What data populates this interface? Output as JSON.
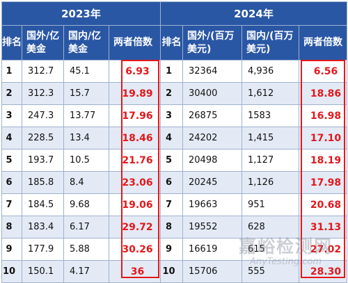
{
  "years": [
    "2023年",
    "2024年"
  ],
  "headers_2023": {
    "rank": "排名",
    "foreign": "国外/亿美金",
    "domestic": "国内/亿美金",
    "ratio": "两者倍数"
  },
  "headers_2024": {
    "rank": "排名",
    "foreign": "国外/(百万美元)",
    "domestic": "国内/(百万美元)",
    "ratio": "两者倍数"
  },
  "rows_2023": [
    {
      "rank": "1",
      "foreign": "312.7",
      "domestic": "45.1",
      "ratio": "6.93"
    },
    {
      "rank": "2",
      "foreign": "312.3",
      "domestic": "15.7",
      "ratio": "19.89"
    },
    {
      "rank": "3",
      "foreign": "247.3",
      "domestic": "13.77",
      "ratio": "17.96"
    },
    {
      "rank": "4",
      "foreign": "228.5",
      "domestic": "13.4",
      "ratio": "18.46"
    },
    {
      "rank": "5",
      "foreign": "193.7",
      "domestic": "10.5",
      "ratio": "21.76"
    },
    {
      "rank": "6",
      "foreign": "185.8",
      "domestic": "8.4",
      "ratio": "23.06"
    },
    {
      "rank": "7",
      "foreign": "184.5",
      "domestic": "9.68",
      "ratio": "19.06"
    },
    {
      "rank": "8",
      "foreign": "183.4",
      "domestic": "6.17",
      "ratio": "29.72"
    },
    {
      "rank": "9",
      "foreign": "177.9",
      "domestic": "5.88",
      "ratio": "30.26"
    },
    {
      "rank": "10",
      "foreign": "150.1",
      "domestic": "4.17",
      "ratio": "36"
    }
  ],
  "rows_2024": [
    {
      "rank": "1",
      "foreign": "32364",
      "domestic": "4,936",
      "ratio": "6.56"
    },
    {
      "rank": "2",
      "foreign": "30400",
      "domestic": "1,612",
      "ratio": "18.86"
    },
    {
      "rank": "3",
      "foreign": "26875",
      "domestic": "1583",
      "ratio": "16.98"
    },
    {
      "rank": "4",
      "foreign": "24202",
      "domestic": "1,415",
      "ratio": "17.10"
    },
    {
      "rank": "5",
      "foreign": "20498",
      "domestic": "1,127",
      "ratio": "18.19"
    },
    {
      "rank": "6",
      "foreign": "20245",
      "domestic": "1,126",
      "ratio": "17.98"
    },
    {
      "rank": "7",
      "foreign": "19663",
      "domestic": "951",
      "ratio": "20.68"
    },
    {
      "rank": "8",
      "foreign": "19552",
      "domestic": "628",
      "ratio": "31.13"
    },
    {
      "rank": "9",
      "foreign": "16619",
      "domestic": "615",
      "ratio": "27.02"
    },
    {
      "rank": "10",
      "foreign": "15706",
      "domestic": "555",
      "ratio": "28.30"
    }
  ],
  "watermark": {
    "cn": "嘉峪检测网",
    "en": "AnyTesting.com"
  },
  "colors": {
    "header_bg": "#2a57a4",
    "alt_row_bg": "#e4eaf5",
    "highlight": "#e3181b",
    "border": "#9db1cf"
  }
}
